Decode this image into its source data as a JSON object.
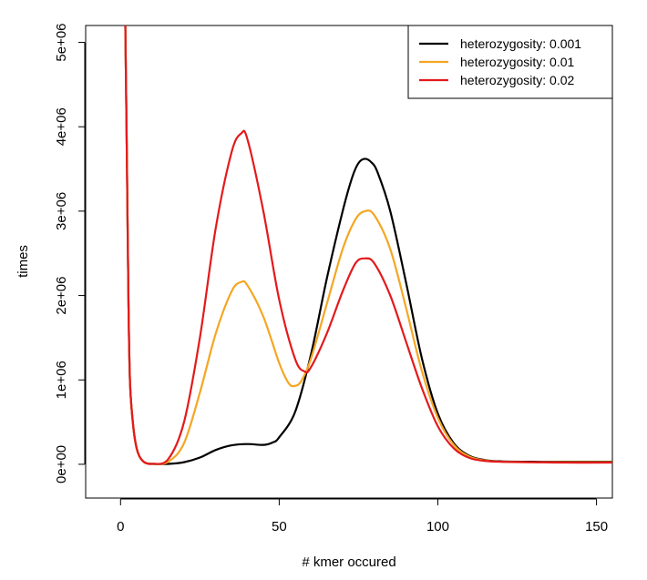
{
  "chart_data": {
    "type": "line",
    "title": "",
    "xlabel": "# kmer occured",
    "ylabel": "times",
    "xlim": [
      -11,
      155
    ],
    "ylim": [
      -400000,
      5200000
    ],
    "x_ticks": [
      0,
      50,
      100,
      150
    ],
    "x_tick_labels": [
      "0",
      "50",
      "100",
      "150"
    ],
    "y_ticks": [
      0,
      1000000,
      2000000,
      3000000,
      4000000,
      5000000
    ],
    "y_tick_labels": [
      "0e+00",
      "1e+06",
      "2e+06",
      "3e+06",
      "4e+06",
      "5e+06"
    ],
    "grid": false,
    "legend_position": "top-right",
    "series": [
      {
        "name": "heterozygosity: 0.001",
        "color": "#000000",
        "points": [
          [
            1.5,
            5200000
          ],
          [
            2,
            3600000
          ],
          [
            2.5,
            1900000
          ],
          [
            3,
            950000
          ],
          [
            4,
            450000
          ],
          [
            5,
            200000
          ],
          [
            6,
            90000
          ],
          [
            7,
            40000
          ],
          [
            8,
            15000
          ],
          [
            10,
            5000
          ],
          [
            15,
            5000
          ],
          [
            20,
            25000
          ],
          [
            25,
            80000
          ],
          [
            30,
            170000
          ],
          [
            35,
            225000
          ],
          [
            40,
            240000
          ],
          [
            45,
            230000
          ],
          [
            48,
            260000
          ],
          [
            50,
            320000
          ],
          [
            55,
            620000
          ],
          [
            60,
            1300000
          ],
          [
            65,
            2200000
          ],
          [
            70,
            3000000
          ],
          [
            73,
            3400000
          ],
          [
            75,
            3570000
          ],
          [
            77,
            3620000
          ],
          [
            79,
            3580000
          ],
          [
            81,
            3460000
          ],
          [
            85,
            3000000
          ],
          [
            90,
            2150000
          ],
          [
            95,
            1250000
          ],
          [
            100,
            600000
          ],
          [
            105,
            250000
          ],
          [
            110,
            100000
          ],
          [
            115,
            50000
          ],
          [
            120,
            35000
          ],
          [
            130,
            30000
          ],
          [
            140,
            30000
          ],
          [
            155,
            30000
          ]
        ]
      },
      {
        "name": "heterozygosity: 0.01",
        "color": "#f5a623",
        "points": [
          [
            1.5,
            5200000
          ],
          [
            2,
            3600000
          ],
          [
            2.5,
            1900000
          ],
          [
            3,
            950000
          ],
          [
            4,
            450000
          ],
          [
            5,
            200000
          ],
          [
            6,
            90000
          ],
          [
            7,
            40000
          ],
          [
            8,
            15000
          ],
          [
            10,
            5000
          ],
          [
            15,
            30000
          ],
          [
            20,
            250000
          ],
          [
            25,
            850000
          ],
          [
            30,
            1550000
          ],
          [
            35,
            2050000
          ],
          [
            38,
            2160000
          ],
          [
            40,
            2120000
          ],
          [
            45,
            1750000
          ],
          [
            50,
            1200000
          ],
          [
            53,
            960000
          ],
          [
            55,
            930000
          ],
          [
            57,
            990000
          ],
          [
            60,
            1250000
          ],
          [
            65,
            1900000
          ],
          [
            70,
            2550000
          ],
          [
            74,
            2900000
          ],
          [
            77,
            3000000
          ],
          [
            80,
            2950000
          ],
          [
            85,
            2550000
          ],
          [
            90,
            1850000
          ],
          [
            95,
            1100000
          ],
          [
            100,
            550000
          ],
          [
            105,
            230000
          ],
          [
            110,
            90000
          ],
          [
            115,
            45000
          ],
          [
            120,
            30000
          ],
          [
            130,
            25000
          ],
          [
            140,
            25000
          ],
          [
            155,
            25000
          ]
        ]
      },
      {
        "name": "heterozygosity: 0.02",
        "color": "#e31a1c",
        "points": [
          [
            1.5,
            5200000
          ],
          [
            2,
            3600000
          ],
          [
            2.5,
            1900000
          ],
          [
            3,
            950000
          ],
          [
            4,
            450000
          ],
          [
            5,
            200000
          ],
          [
            6,
            90000
          ],
          [
            7,
            40000
          ],
          [
            8,
            15000
          ],
          [
            10,
            5000
          ],
          [
            15,
            60000
          ],
          [
            20,
            500000
          ],
          [
            25,
            1500000
          ],
          [
            30,
            2800000
          ],
          [
            35,
            3700000
          ],
          [
            38,
            3920000
          ],
          [
            40,
            3850000
          ],
          [
            45,
            3000000
          ],
          [
            50,
            1950000
          ],
          [
            55,
            1250000
          ],
          [
            58,
            1100000
          ],
          [
            60,
            1150000
          ],
          [
            65,
            1550000
          ],
          [
            70,
            2050000
          ],
          [
            74,
            2380000
          ],
          [
            77,
            2440000
          ],
          [
            80,
            2380000
          ],
          [
            85,
            2000000
          ],
          [
            90,
            1450000
          ],
          [
            95,
            900000
          ],
          [
            100,
            450000
          ],
          [
            105,
            190000
          ],
          [
            110,
            75000
          ],
          [
            115,
            40000
          ],
          [
            120,
            30000
          ],
          [
            130,
            25000
          ],
          [
            140,
            20000
          ],
          [
            155,
            20000
          ]
        ]
      }
    ]
  }
}
